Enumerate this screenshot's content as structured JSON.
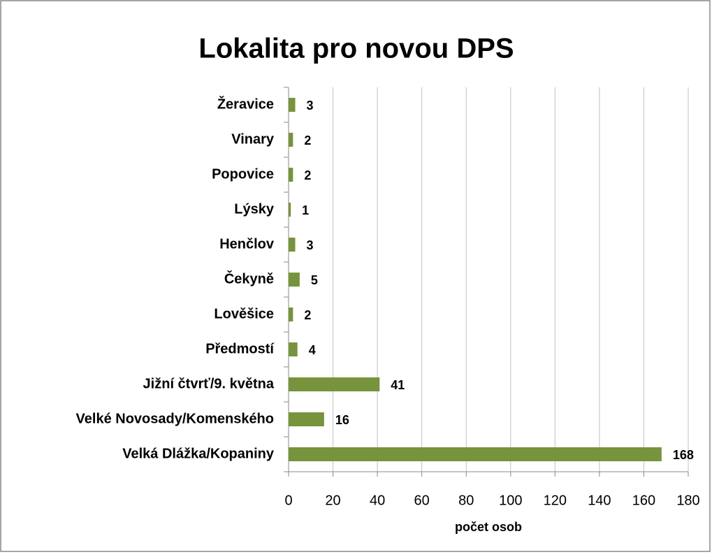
{
  "chart_data": {
    "type": "barh",
    "title": "Lokalita pro novou DPS",
    "xlabel": "počet osob",
    "categories": [
      "Žeravice",
      "Vinary",
      "Popovice",
      "Lýsky",
      "Henčlov",
      "Čekyně",
      "Lověšice",
      "Předmostí",
      "Jižní čtvrť/9. května",
      "Velké Novosady/Komenského",
      "Velká Dlážka/Kopaniny"
    ],
    "values": [
      3,
      2,
      2,
      1,
      3,
      5,
      2,
      4,
      41,
      16,
      168
    ],
    "color": "#77933c",
    "xlim": [
      0,
      180
    ],
    "xticks": [
      0,
      20,
      40,
      60,
      80,
      100,
      120,
      140,
      160,
      180
    ],
    "grid": true
  }
}
